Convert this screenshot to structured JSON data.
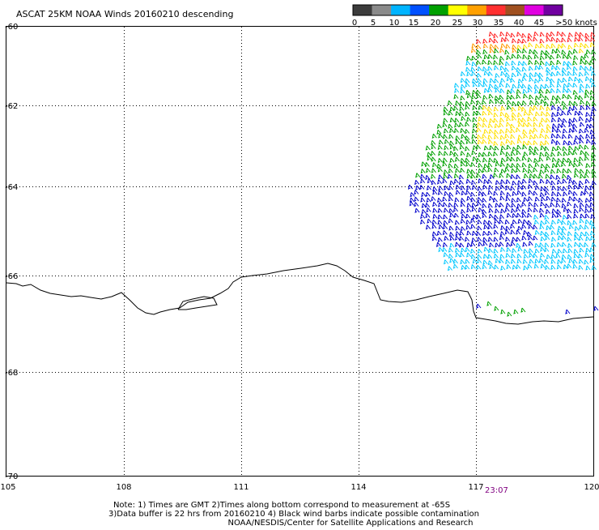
{
  "title": "ASCAT 25KM NOAA Winds 20160210 descending",
  "legend": {
    "labels": [
      "0",
      "5",
      "10",
      "15",
      "20",
      "25",
      "30",
      "35",
      "40",
      "45",
      ">50 knots"
    ],
    "colors": [
      "#3c3c3c",
      "#8a8a8a",
      "#00b4ff",
      "#0050ff",
      "#00a000",
      "#ffff00",
      "#ffa000",
      "#ff3030",
      "#a05020",
      "#e000e0",
      "#7000a0"
    ]
  },
  "axes": {
    "lon_ticks": [
      "105",
      "108",
      "111",
      "114",
      "117",
      "120"
    ],
    "lat_ticks": [
      "-60",
      "-62",
      "-64",
      "-66",
      "-68",
      "-70"
    ]
  },
  "pass_time": "23:07",
  "notes": {
    "line1": "Note: 1) Times are GMT 2)Times along bottom correspond to measurement at -65S",
    "line2": "3)Data buffer is 22 hrs from 20160210 4) Black wind barbs indicate possible contamination",
    "line3": "NOAA/NESDIS/Center for Satellite Applications and Research"
  },
  "colors": {
    "background": "#ffffff",
    "frame": "#000000",
    "coastline": "#000000",
    "pass_time": "#800080",
    "barb_blue": "#0000cc",
    "barb_cyan": "#00c8ff",
    "barb_green": "#00a000",
    "barb_yellow": "#ffe000",
    "barb_orange": "#ff9900",
    "barb_red": "#ff2020"
  }
}
